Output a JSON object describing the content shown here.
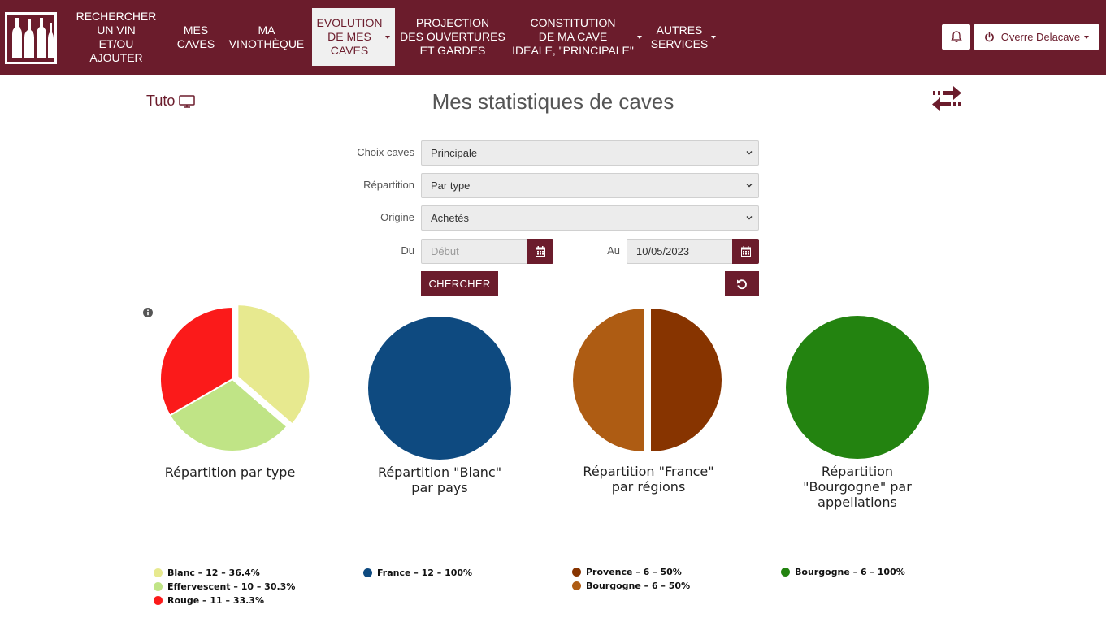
{
  "nav": {
    "logo_alt": "logo",
    "items": [
      {
        "label": "RECHERCHER\nUN VIN\nET/OU AJOUTER"
      },
      {
        "label": "MES\nCAVES"
      },
      {
        "label": "MA\nVINOTHÈQUE"
      },
      {
        "label": "EVOLUTION\nDE MES\nCAVES"
      },
      {
        "label": "PROJECTION\nDES OUVERTURES\nET GARDES"
      },
      {
        "label": "CONSTITUTION\nDE MA CAVE\nIDÉALE, \"PRINCIPALE\""
      },
      {
        "label": "AUTRES\nSERVICES"
      }
    ],
    "user_label": "Overre Delacave"
  },
  "header": {
    "tuto_label": "Tuto",
    "title": "Mes statistiques de caves"
  },
  "form": {
    "caves_label": "Choix caves",
    "caves_value": "Principale",
    "repartition_label": "Répartition",
    "repartition_value": "Par type",
    "origine_label": "Origine",
    "origine_value": "Achetés",
    "du_label": "Du",
    "du_placeholder": "Début",
    "au_label": "Au",
    "au_value": "10/05/2023",
    "search_label": "CHERCHER"
  },
  "colors": {
    "brand": "#6b1c2c",
    "blanc": "#e7e98f",
    "effervescent": "#c0e486",
    "rouge": "#fb1a1a",
    "france": "#0e4a80",
    "provence": "#873400",
    "bourgogne_region": "#ae5c13",
    "bourgogne_appellation": "#238310"
  },
  "chart_data": [
    {
      "type": "pie",
      "title": "Répartition par type",
      "slices": [
        {
          "name": "Blanc",
          "count": 12,
          "percent": 36.4,
          "color": "#e7e98f",
          "legend": "Blanc – 12 – 36.4%",
          "exploded": true
        },
        {
          "name": "Effervescent",
          "count": 10,
          "percent": 30.3,
          "color": "#c0e486",
          "legend": "Effervescent – 10 – 30.3%"
        },
        {
          "name": "Rouge",
          "count": 11,
          "percent": 33.3,
          "color": "#fb1a1a",
          "legend": "Rouge – 11 – 33.3%"
        }
      ]
    },
    {
      "type": "pie",
      "title": "Répartition \"Blanc\"\npar pays",
      "slices": [
        {
          "name": "France",
          "count": 12,
          "percent": 100,
          "color": "#0e4a80",
          "legend": "France – 12 – 100%"
        }
      ]
    },
    {
      "type": "pie",
      "title": "Répartition \"France\"\npar régions",
      "slices": [
        {
          "name": "Provence",
          "count": 6,
          "percent": 50,
          "color": "#873400",
          "legend": "Provence – 6 – 50%",
          "exploded": true
        },
        {
          "name": "Bourgogne",
          "count": 6,
          "percent": 50,
          "color": "#ae5c13",
          "legend": "Bourgogne – 6 – 50%"
        }
      ]
    },
    {
      "type": "pie",
      "title": "Répartition\n\"Bourgogne\" par\nappellations",
      "slices": [
        {
          "name": "Bourgogne",
          "count": 6,
          "percent": 100,
          "color": "#238310",
          "legend": "Bourgogne – 6 – 100%"
        }
      ]
    }
  ]
}
